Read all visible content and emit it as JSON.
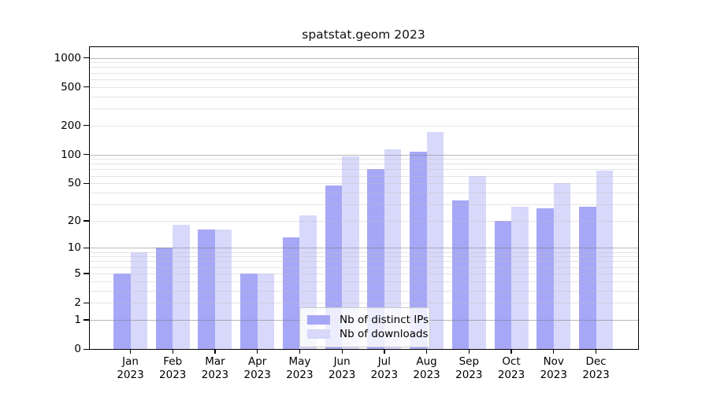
{
  "chart_data": {
    "type": "bar",
    "title": "spatstat.geom 2023",
    "categories": [
      "Jan 2023",
      "Feb 2023",
      "Mar 2023",
      "Apr 2023",
      "May 2023",
      "Jun 2023",
      "Jul 2023",
      "Aug 2023",
      "Sep 2023",
      "Oct 2023",
      "Nov 2023",
      "Dec 2023"
    ],
    "series": [
      {
        "name": "Nb of distinct IPs",
        "color": "#a7a7f7",
        "values": [
          5,
          10,
          16,
          5,
          13,
          47,
          70,
          106,
          33,
          20,
          27,
          28
        ]
      },
      {
        "name": "Nb of downloads",
        "color": "#d8d8fb",
        "values": [
          9,
          18,
          16,
          5,
          23,
          95,
          113,
          170,
          60,
          28,
          50,
          68
        ]
      }
    ],
    "xlabel": "",
    "ylabel": "",
    "yscale": "log1p",
    "ylim": [
      0,
      1290
    ],
    "yticks": [
      0,
      1,
      2,
      5,
      10,
      20,
      50,
      100,
      200,
      500,
      1000
    ],
    "major_gridlines": [
      1,
      10,
      100,
      1000
    ],
    "minor_gridlines": [
      2,
      3,
      4,
      5,
      6,
      7,
      8,
      9,
      20,
      30,
      40,
      50,
      60,
      70,
      80,
      90,
      200,
      300,
      400,
      500,
      600,
      700,
      800,
      900
    ],
    "grid": true,
    "legend_position": "inside-bottom-center"
  },
  "colors": {
    "background": "#ffffff",
    "bar_ips": "#a7a7f7",
    "bar_downloads": "#d8d8fb",
    "axis": "#000000",
    "major_grid": "#b2b2b2",
    "minor_grid": "#e4e4e4"
  }
}
